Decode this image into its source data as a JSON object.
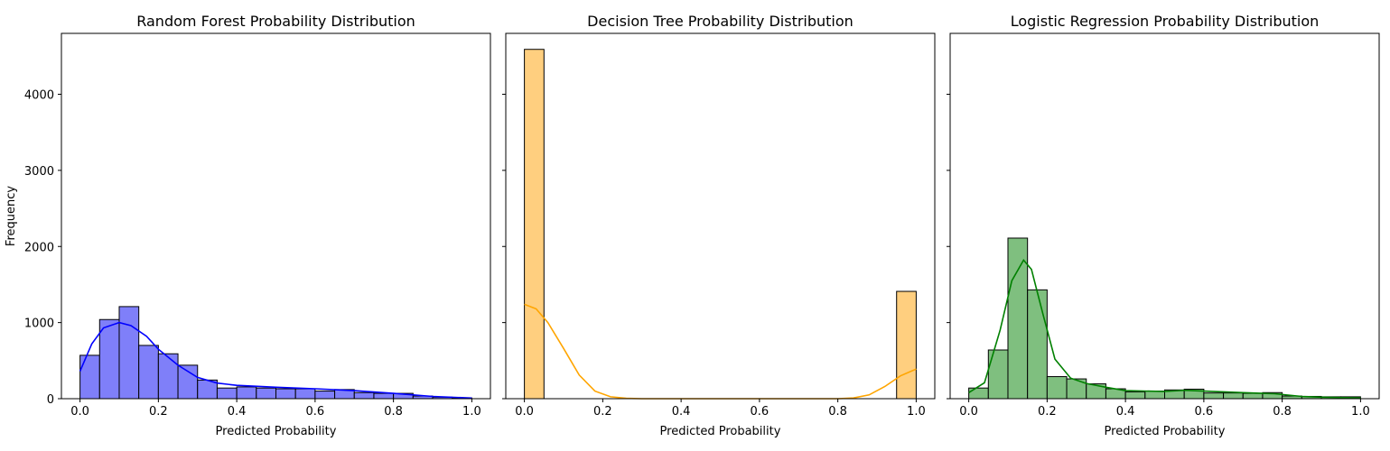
{
  "chart_data": [
    {
      "type": "histogram",
      "title": "Random Forest Probability Distribution",
      "xlabel": "Predicted Probability",
      "ylabel": "Frequency",
      "xlim": [
        0.0,
        1.0
      ],
      "ylim": [
        0,
        4800
      ],
      "xticks": [
        "0.0",
        "0.2",
        "0.4",
        "0.6",
        "0.8",
        "1.0"
      ],
      "yticks": [
        "0",
        "1000",
        "2000",
        "3000",
        "4000"
      ],
      "bin_edges": [
        0.0,
        0.05,
        0.1,
        0.15,
        0.2,
        0.25,
        0.3,
        0.35,
        0.4,
        0.45,
        0.5,
        0.55,
        0.6,
        0.65,
        0.7,
        0.75,
        0.8,
        0.85,
        0.9,
        0.95,
        1.0
      ],
      "counts": [
        570,
        1040,
        1210,
        700,
        590,
        440,
        245,
        140,
        155,
        140,
        130,
        130,
        100,
        120,
        80,
        70,
        70,
        35,
        20,
        10
      ],
      "kde": {
        "x": [
          0.0,
          0.03,
          0.06,
          0.1,
          0.13,
          0.17,
          0.2,
          0.25,
          0.3,
          0.35,
          0.4,
          0.5,
          0.6,
          0.7,
          0.8,
          0.9,
          1.0
        ],
        "y": [
          360,
          720,
          930,
          1000,
          960,
          820,
          650,
          440,
          280,
          205,
          175,
          150,
          130,
          105,
          70,
          30,
          8
        ]
      },
      "fill_color": "#7f7ff9",
      "line_color": "#0000ff"
    },
    {
      "type": "histogram",
      "title": "Decision Tree Probability Distribution",
      "xlabel": "Predicted Probability",
      "ylabel": "",
      "xlim": [
        0.0,
        1.0
      ],
      "ylim": [
        0,
        4800
      ],
      "xticks": [
        "0.0",
        "0.2",
        "0.4",
        "0.6",
        "0.8",
        "1.0"
      ],
      "yticks": [],
      "bin_edges": [
        0.0,
        0.05,
        0.1,
        0.15,
        0.2,
        0.25,
        0.3,
        0.35,
        0.4,
        0.45,
        0.5,
        0.55,
        0.6,
        0.65,
        0.7,
        0.75,
        0.8,
        0.85,
        0.9,
        0.95,
        1.0
      ],
      "counts": [
        4590,
        0,
        0,
        0,
        0,
        0,
        0,
        0,
        0,
        0,
        0,
        0,
        0,
        0,
        0,
        0,
        0,
        0,
        0,
        1410
      ],
      "kde": {
        "x": [
          0.0,
          0.03,
          0.06,
          0.1,
          0.14,
          0.18,
          0.22,
          0.26,
          0.3,
          0.4,
          0.6,
          0.8,
          0.84,
          0.88,
          0.92,
          0.96,
          1.0
        ],
        "y": [
          1240,
          1180,
          1000,
          660,
          310,
          100,
          25,
          5,
          0,
          0,
          0,
          0,
          10,
          50,
          160,
          300,
          390
        ]
      },
      "fill_color": "#ffcf7f",
      "line_color": "#ffa500"
    },
    {
      "type": "histogram",
      "title": "Logistic Regression Probability Distribution",
      "xlabel": "Predicted Probability",
      "ylabel": "",
      "xlim": [
        0.0,
        1.0
      ],
      "ylim": [
        0,
        4800
      ],
      "xticks": [
        "0.0",
        "0.2",
        "0.4",
        "0.6",
        "0.8",
        "1.0"
      ],
      "yticks": [],
      "bin_edges": [
        0.0,
        0.05,
        0.1,
        0.15,
        0.2,
        0.25,
        0.3,
        0.35,
        0.4,
        0.45,
        0.5,
        0.55,
        0.6,
        0.65,
        0.7,
        0.75,
        0.8,
        0.85,
        0.9,
        0.95,
        1.0
      ],
      "counts": [
        140,
        640,
        2110,
        1430,
        290,
        260,
        195,
        130,
        90,
        100,
        115,
        125,
        75,
        75,
        70,
        80,
        35,
        30,
        25,
        25
      ],
      "kde": {
        "x": [
          0.0,
          0.04,
          0.08,
          0.11,
          0.14,
          0.16,
          0.19,
          0.22,
          0.26,
          0.3,
          0.35,
          0.4,
          0.5,
          0.55,
          0.6,
          0.7,
          0.78,
          0.85,
          0.9,
          1.0
        ],
        "y": [
          80,
          210,
          900,
          1550,
          1820,
          1700,
          1100,
          520,
          270,
          200,
          150,
          105,
          95,
          110,
          100,
          80,
          65,
          30,
          20,
          10
        ]
      },
      "fill_color": "#7fbf7f",
      "line_color": "#008000"
    }
  ]
}
